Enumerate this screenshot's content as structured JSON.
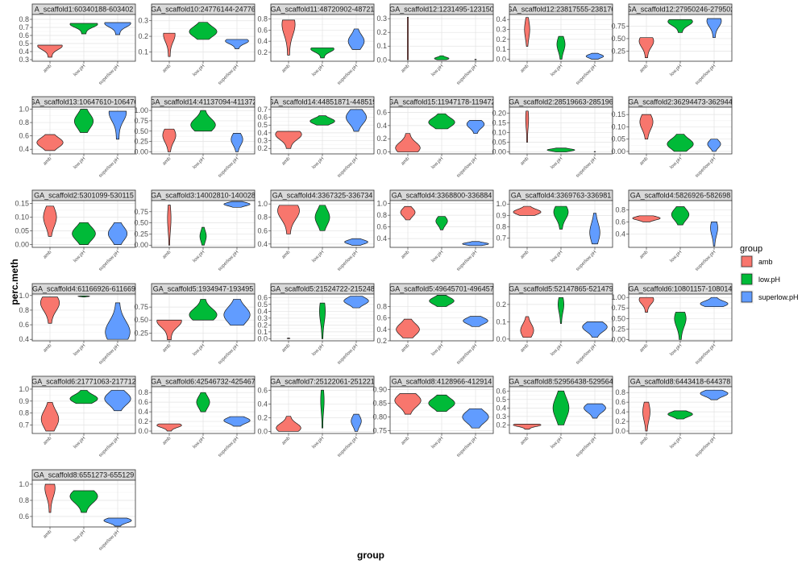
{
  "chart_data": {
    "type": "violin",
    "xlabel": "group",
    "ylabel": "perc.meth",
    "legend": {
      "title": "group",
      "placement": "right",
      "entries": [
        "amb",
        "low.pH",
        "superlow.pH"
      ]
    },
    "categories": [
      "amb",
      "low.pH",
      "superlow.pH"
    ],
    "colors": {
      "amb": "#F8766D",
      "low.pH": "#00BA38",
      "superlow.pH": "#619CFF"
    },
    "grid": true,
    "panels": [
      {
        "strip": "A_scaffold1:60340188-603402",
        "ylim": [
          0.28,
          0.86
        ],
        "ticks": [
          0.3,
          0.4,
          0.5,
          0.6,
          0.7,
          0.8
        ],
        "violins": [
          {
            "min": 0.33,
            "max": 0.48,
            "mode": 0.47,
            "w": 0.85
          },
          {
            "min": 0.62,
            "max": 0.75,
            "mode": 0.74,
            "w": 0.95
          },
          {
            "min": 0.61,
            "max": 0.76,
            "mode": 0.75,
            "w": 0.9
          }
        ]
      },
      {
        "strip": "GA_scaffold10:24776144-24776",
        "ylim": [
          0.04,
          0.34
        ],
        "ticks": [
          0.1,
          0.2,
          0.3
        ],
        "violins": [
          {
            "min": 0.07,
            "max": 0.22,
            "mode": 0.21,
            "w": 0.4
          },
          {
            "min": 0.18,
            "max": 0.29,
            "mode": 0.23,
            "w": 0.95
          },
          {
            "min": 0.12,
            "max": 0.18,
            "mode": 0.17,
            "w": 0.8
          }
        ]
      },
      {
        "strip": "GA_scaffold11:48720902-48721",
        "ylim": [
          0.04,
          0.88
        ],
        "ticks": [
          0.2,
          0.4,
          0.6,
          0.8
        ],
        "violins": [
          {
            "min": 0.15,
            "max": 0.78,
            "mode": 0.7,
            "w": 0.45
          },
          {
            "min": 0.1,
            "max": 0.28,
            "mode": 0.26,
            "w": 0.8
          },
          {
            "min": 0.25,
            "max": 0.62,
            "mode": 0.4,
            "w": 0.55
          }
        ]
      },
      {
        "strip": "GA_scaffold12:1231495-123150",
        "ylim": [
          -0.01,
          0.33
        ],
        "ticks": [
          0.0,
          0.1,
          0.2,
          0.3
        ],
        "violins": [
          {
            "min": 0.0,
            "max": 0.31,
            "mode": 0.05,
            "w": 0.03
          },
          {
            "min": 0.0,
            "max": 0.03,
            "mode": 0.01,
            "w": 0.5
          },
          {
            "min": 0.0,
            "max": 0.004,
            "mode": 0.002,
            "w": 0.06
          }
        ]
      },
      {
        "strip": "GA_scaffold12:23817555-238176",
        "ylim": [
          -0.02,
          0.45
        ],
        "ticks": [
          0.0,
          0.1,
          0.2,
          0.3,
          0.4
        ],
        "violins": [
          {
            "min": 0.13,
            "max": 0.42,
            "mode": 0.3,
            "w": 0.18
          },
          {
            "min": 0.0,
            "max": 0.23,
            "mode": 0.15,
            "w": 0.28
          },
          {
            "min": 0.0,
            "max": 0.06,
            "mode": 0.03,
            "w": 0.6
          }
        ]
      },
      {
        "strip": "GA_scaffold12:27950246-279502",
        "ylim": [
          0.05,
          0.98
        ],
        "ticks": [
          0.25,
          0.5,
          0.75
        ],
        "violins": [
          {
            "min": 0.12,
            "max": 0.52,
            "mode": 0.45,
            "w": 0.5
          },
          {
            "min": 0.62,
            "max": 0.88,
            "mode": 0.84,
            "w": 0.85
          },
          {
            "min": 0.52,
            "max": 0.9,
            "mode": 0.85,
            "w": 0.5
          }
        ]
      },
      {
        "strip": "GA_scaffold13:10647610-106476",
        "ylim": [
          0.33,
          1.03
        ],
        "ticks": [
          0.4,
          0.6,
          0.8,
          1.0
        ],
        "violins": [
          {
            "min": 0.38,
            "max": 0.62,
            "mode": 0.5,
            "w": 0.9
          },
          {
            "min": 0.65,
            "max": 1.0,
            "mode": 0.82,
            "w": 0.65
          },
          {
            "min": 0.55,
            "max": 0.97,
            "mode": 0.95,
            "w": 0.6
          }
        ]
      },
      {
        "strip": "GA_scaffold14:41137094-411372",
        "ylim": [
          -0.05,
          1.08
        ],
        "ticks": [
          0.0,
          0.25,
          0.5,
          0.75,
          1.0
        ],
        "violins": [
          {
            "min": 0.0,
            "max": 0.55,
            "mode": 0.4,
            "w": 0.45
          },
          {
            "min": 0.5,
            "max": 1.0,
            "mode": 0.65,
            "w": 0.85
          },
          {
            "min": 0.0,
            "max": 0.45,
            "mode": 0.3,
            "w": 0.4
          }
        ]
      },
      {
        "strip": "GA_scaffold14:44851871-448519",
        "ylim": [
          0.13,
          0.73
        ],
        "ticks": [
          0.2,
          0.3,
          0.4,
          0.5,
          0.6,
          0.7
        ],
        "violins": [
          {
            "min": 0.2,
            "max": 0.42,
            "mode": 0.38,
            "w": 0.9
          },
          {
            "min": 0.5,
            "max": 0.62,
            "mode": 0.55,
            "w": 0.85
          },
          {
            "min": 0.42,
            "max": 0.7,
            "mode": 0.6,
            "w": 0.7
          }
        ]
      },
      {
        "strip": "GA_scaffold15:11947178-119472",
        "ylim": [
          -0.03,
          0.68
        ],
        "ticks": [
          0.0,
          0.2,
          0.4,
          0.6
        ],
        "violins": [
          {
            "min": 0.0,
            "max": 0.28,
            "mode": 0.06,
            "w": 0.85
          },
          {
            "min": 0.35,
            "max": 0.58,
            "mode": 0.45,
            "w": 0.9
          },
          {
            "min": 0.28,
            "max": 0.48,
            "mode": 0.42,
            "w": 0.6
          }
        ]
      },
      {
        "strip": "GA_scaffold2:28519663-285196",
        "ylim": [
          -0.01,
          0.23
        ],
        "ticks": [
          0.0,
          0.05,
          0.1,
          0.15,
          0.2
        ],
        "violins": [
          {
            "min": 0.05,
            "max": 0.21,
            "mode": 0.17,
            "w": 0.1
          },
          {
            "min": 0.0,
            "max": 0.02,
            "mode": 0.01,
            "w": 0.95
          },
          {
            "min": 0.0,
            "max": 0.002,
            "mode": 0.001,
            "w": 0.05
          }
        ]
      },
      {
        "strip": "GA_scaffold2:36294473-362944",
        "ylim": [
          -0.01,
          0.18
        ],
        "ticks": [
          0.0,
          0.05,
          0.1,
          0.15
        ],
        "violins": [
          {
            "min": 0.05,
            "max": 0.15,
            "mode": 0.12,
            "w": 0.45
          },
          {
            "min": 0.0,
            "max": 0.07,
            "mode": 0.03,
            "w": 0.9
          },
          {
            "min": 0.0,
            "max": 0.05,
            "mode": 0.03,
            "w": 0.45
          }
        ]
      },
      {
        "strip": "GA_scaffold2:5301099-530115",
        "ylim": [
          -0.01,
          0.16
        ],
        "ticks": [
          0.0,
          0.05,
          0.1,
          0.15
        ],
        "violins": [
          {
            "min": 0.03,
            "max": 0.14,
            "mode": 0.1,
            "w": 0.45
          },
          {
            "min": 0.0,
            "max": 0.08,
            "mode": 0.04,
            "w": 0.8
          },
          {
            "min": 0.0,
            "max": 0.08,
            "mode": 0.04,
            "w": 0.65
          }
        ]
      },
      {
        "strip": "GA_scaffold3:14002810-140028",
        "ylim": [
          -0.05,
          1.0
        ],
        "ticks": [
          0.0,
          0.25,
          0.5,
          0.75
        ],
        "violins": [
          {
            "min": 0.0,
            "max": 0.9,
            "mode": 0.6,
            "w": 0.12
          },
          {
            "min": 0.0,
            "max": 0.4,
            "mode": 0.2,
            "w": 0.22
          },
          {
            "min": 0.85,
            "max": 0.98,
            "mode": 0.92,
            "w": 0.9
          }
        ]
      },
      {
        "strip": "GA_scaffold4:3367325-336734",
        "ylim": [
          0.35,
          1.05
        ],
        "ticks": [
          0.4,
          0.6,
          0.8,
          1.0
        ],
        "violins": [
          {
            "min": 0.55,
            "max": 0.98,
            "mode": 0.9,
            "w": 0.75
          },
          {
            "min": 0.6,
            "max": 0.98,
            "mode": 0.8,
            "w": 0.5
          },
          {
            "min": 0.38,
            "max": 0.48,
            "mode": 0.43,
            "w": 0.8
          }
        ]
      },
      {
        "strip": "GA_scaffold4:3368800-336884",
        "ylim": [
          0.25,
          1.05
        ],
        "ticks": [
          0.4,
          0.6,
          0.8,
          1.0
        ],
        "violins": [
          {
            "min": 0.72,
            "max": 0.95,
            "mode": 0.85,
            "w": 0.5
          },
          {
            "min": 0.55,
            "max": 0.78,
            "mode": 0.7,
            "w": 0.4
          },
          {
            "min": 0.28,
            "max": 0.35,
            "mode": 0.31,
            "w": 0.9
          }
        ]
      },
      {
        "strip": "GA_scaffold4:3369763-336981",
        "ylim": [
          0.62,
          1.03
        ],
        "ticks": [
          0.7,
          0.8,
          0.9,
          1.0
        ],
        "violins": [
          {
            "min": 0.9,
            "max": 0.98,
            "mode": 0.93,
            "w": 0.95
          },
          {
            "min": 0.78,
            "max": 0.98,
            "mode": 0.93,
            "w": 0.5
          },
          {
            "min": 0.65,
            "max": 0.92,
            "mode": 0.75,
            "w": 0.35
          }
        ]
      },
      {
        "strip": "GA_scaffold4:5826926-582698",
        "ylim": [
          0.18,
          0.95
        ],
        "ticks": [
          0.4,
          0.6,
          0.8
        ],
        "violins": [
          {
            "min": 0.6,
            "max": 0.7,
            "mode": 0.66,
            "w": 0.95
          },
          {
            "min": 0.55,
            "max": 0.85,
            "mode": 0.72,
            "w": 0.6
          },
          {
            "min": 0.2,
            "max": 0.6,
            "mode": 0.5,
            "w": 0.25
          }
        ]
      },
      {
        "strip": "GA_scaffold4:61166926-611669",
        "ylim": [
          0.38,
          1.02
        ],
        "ticks": [
          0.4,
          0.6,
          0.8,
          1.0
        ],
        "violins": [
          {
            "min": 0.62,
            "max": 0.98,
            "mode": 0.9,
            "w": 0.65
          },
          {
            "min": 0.98,
            "max": 0.995,
            "mode": 0.99,
            "w": 0.4
          },
          {
            "min": 0.4,
            "max": 0.9,
            "mode": 0.5,
            "w": 0.85
          }
        ]
      },
      {
        "strip": "GA_scaffold5:1934947-193495",
        "ylim": [
          0.1,
          1.0
        ],
        "ticks": [
          0.25,
          0.5,
          0.75
        ],
        "violins": [
          {
            "min": 0.12,
            "max": 0.5,
            "mode": 0.48,
            "w": 0.85
          },
          {
            "min": 0.5,
            "max": 0.9,
            "mode": 0.6,
            "w": 0.95
          },
          {
            "min": 0.4,
            "max": 0.9,
            "mode": 0.6,
            "w": 0.9
          }
        ]
      },
      {
        "strip": "GA_scaffold5:21524722-215248",
        "ylim": [
          -0.03,
          0.65
        ],
        "ticks": [
          0.0,
          0.1,
          0.2,
          0.3,
          0.4,
          0.5,
          0.6
        ],
        "violins": [
          {
            "min": 0.0,
            "max": 0.01,
            "mode": 0.005,
            "w": 0.1
          },
          {
            "min": 0.0,
            "max": 0.52,
            "mode": 0.4,
            "w": 0.2
          },
          {
            "min": 0.45,
            "max": 0.62,
            "mode": 0.55,
            "w": 0.85
          }
        ]
      },
      {
        "strip": "GA_scaffold5:49645701-496457",
        "ylim": [
          0.2,
          1.02
        ],
        "ticks": [
          0.2,
          0.4,
          0.6,
          0.8
        ],
        "violins": [
          {
            "min": 0.25,
            "max": 0.58,
            "mode": 0.4,
            "w": 0.8
          },
          {
            "min": 0.8,
            "max": 1.0,
            "mode": 0.9,
            "w": 0.85
          },
          {
            "min": 0.45,
            "max": 0.63,
            "mode": 0.55,
            "w": 0.85
          }
        ]
      },
      {
        "strip": "GA_scaffold5:52147865-521479",
        "ylim": [
          -0.01,
          0.26
        ],
        "ticks": [
          0.0,
          0.1,
          0.2
        ],
        "violins": [
          {
            "min": 0.01,
            "max": 0.13,
            "mode": 0.05,
            "w": 0.45
          },
          {
            "min": 0.09,
            "max": 0.24,
            "mode": 0.2,
            "w": 0.2
          },
          {
            "min": 0.01,
            "max": 0.1,
            "mode": 0.07,
            "w": 0.85
          }
        ]
      },
      {
        "strip": "GA_scaffold6:10801157-108014",
        "ylim": [
          -0.03,
          1.08
        ],
        "ticks": [
          0.0,
          0.25,
          0.5,
          0.75,
          1.0
        ],
        "violins": [
          {
            "min": 0.65,
            "max": 1.0,
            "mode": 0.95,
            "w": 0.5
          },
          {
            "min": 0.0,
            "max": 0.65,
            "mode": 0.5,
            "w": 0.4
          },
          {
            "min": 0.78,
            "max": 1.0,
            "mode": 0.85,
            "w": 0.95
          }
        ]
      },
      {
        "strip": "GA_scaffold6:21771063-217712",
        "ylim": [
          0.63,
          1.02
        ],
        "ticks": [
          0.7,
          0.8,
          0.9,
          1.0
        ],
        "violins": [
          {
            "min": 0.65,
            "max": 0.89,
            "mode": 0.75,
            "w": 0.6
          },
          {
            "min": 0.88,
            "max": 0.99,
            "mode": 0.92,
            "w": 0.95
          },
          {
            "min": 0.82,
            "max": 0.99,
            "mode": 0.92,
            "w": 0.9
          }
        ]
      },
      {
        "strip": "GA_scaffold6:42546732-425467",
        "ylim": [
          -0.05,
          0.92
        ],
        "ticks": [
          0.0,
          0.2,
          0.4,
          0.6,
          0.8
        ],
        "violins": [
          {
            "min": 0.0,
            "max": 0.15,
            "mode": 0.12,
            "w": 0.85
          },
          {
            "min": 0.4,
            "max": 0.8,
            "mode": 0.6,
            "w": 0.45
          },
          {
            "min": 0.1,
            "max": 0.3,
            "mode": 0.22,
            "w": 0.9
          }
        ]
      },
      {
        "strip": "GA_scaffold7:25122061-251221",
        "ylim": [
          -0.03,
          0.65
        ],
        "ticks": [
          0.0,
          0.2,
          0.4,
          0.6
        ],
        "violins": [
          {
            "min": 0.0,
            "max": 0.22,
            "mode": 0.05,
            "w": 0.85
          },
          {
            "min": 0.05,
            "max": 0.6,
            "mode": 0.45,
            "w": 0.12
          },
          {
            "min": 0.0,
            "max": 0.25,
            "mode": 0.15,
            "w": 0.35
          }
        ]
      },
      {
        "strip": "GA_scaffold8:4128966-412914",
        "ylim": [
          0.74,
          0.91
        ],
        "ticks": [
          0.75,
          0.8,
          0.85,
          0.9
        ],
        "violins": [
          {
            "min": 0.81,
            "max": 0.885,
            "mode": 0.86,
            "w": 0.9
          },
          {
            "min": 0.82,
            "max": 0.88,
            "mode": 0.85,
            "w": 0.9
          },
          {
            "min": 0.76,
            "max": 0.83,
            "mode": 0.8,
            "w": 0.9
          }
        ]
      },
      {
        "strip": "GA_scaffold8:52956438-529564",
        "ylim": [
          0.1,
          0.65
        ],
        "ticks": [
          0.2,
          0.3,
          0.4,
          0.5,
          0.6
        ],
        "violins": [
          {
            "min": 0.15,
            "max": 0.21,
            "mode": 0.2,
            "w": 0.95
          },
          {
            "min": 0.2,
            "max": 0.6,
            "mode": 0.4,
            "w": 0.55
          },
          {
            "min": 0.28,
            "max": 0.45,
            "mode": 0.4,
            "w": 0.75
          }
        ]
      },
      {
        "strip": "GA_scaffold8:6443418-644378",
        "ylim": [
          -0.05,
          0.92
        ],
        "ticks": [
          0.0,
          0.2,
          0.4,
          0.6,
          0.8
        ],
        "violins": [
          {
            "min": 0.0,
            "max": 0.6,
            "mode": 0.4,
            "w": 0.25
          },
          {
            "min": 0.25,
            "max": 0.42,
            "mode": 0.35,
            "w": 0.85
          },
          {
            "min": 0.65,
            "max": 0.85,
            "mode": 0.78,
            "w": 0.95
          }
        ]
      },
      {
        "strip": "GA_scaffold8:6551273-655129",
        "ylim": [
          0.47,
          1.05
        ],
        "ticks": [
          0.6,
          0.8,
          1.0
        ],
        "violins": [
          {
            "min": 0.65,
            "max": 1.0,
            "mode": 0.95,
            "w": 0.35
          },
          {
            "min": 0.65,
            "max": 0.92,
            "mode": 0.85,
            "w": 0.95
          },
          {
            "min": 0.48,
            "max": 0.58,
            "mode": 0.55,
            "w": 0.95
          }
        ]
      }
    ]
  }
}
